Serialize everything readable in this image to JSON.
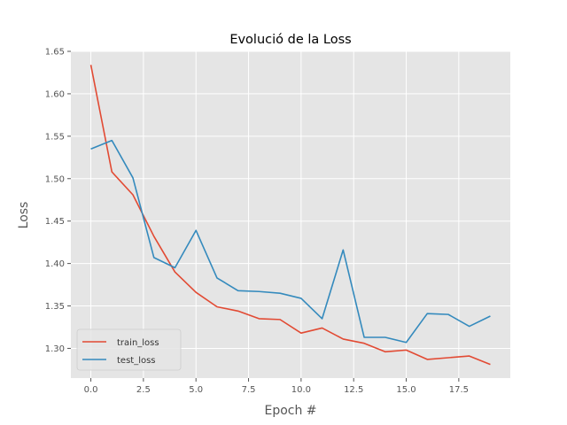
{
  "chart_data": {
    "type": "line",
    "title": "Evolució de la Loss",
    "xlabel": "Epoch #",
    "ylabel": "Loss",
    "xlim": [
      -0.95,
      19.95
    ],
    "ylim": [
      1.265,
      1.65
    ],
    "xticks": [
      0,
      2.5,
      5,
      7.5,
      10,
      12.5,
      15,
      17.5
    ],
    "xtick_labels": [
      "0.0",
      "2.5",
      "5.0",
      "7.5",
      "10.0",
      "12.5",
      "15.0",
      "17.5"
    ],
    "yticks": [
      1.3,
      1.35,
      1.4,
      1.45,
      1.5,
      1.55,
      1.6,
      1.65
    ],
    "ytick_labels": [
      "1.30",
      "1.35",
      "1.40",
      "1.45",
      "1.50",
      "1.55",
      "1.60",
      "1.65"
    ],
    "grid": true,
    "legend_position": "lower-left",
    "x": [
      0,
      1,
      2,
      3,
      4,
      5,
      6,
      7,
      8,
      9,
      10,
      11,
      12,
      13,
      14,
      15,
      16,
      17,
      18,
      19
    ],
    "series": [
      {
        "name": "train_loss",
        "color": "#E24A33",
        "values": [
          1.634,
          1.508,
          1.481,
          1.432,
          1.39,
          1.366,
          1.349,
          1.344,
          1.335,
          1.334,
          1.318,
          1.324,
          1.311,
          1.306,
          1.296,
          1.298,
          1.287,
          1.289,
          1.291,
          1.281
        ]
      },
      {
        "name": "test_loss",
        "color": "#348ABD",
        "values": [
          1.535,
          1.545,
          1.501,
          1.407,
          1.395,
          1.439,
          1.383,
          1.368,
          1.367,
          1.365,
          1.359,
          1.335,
          1.416,
          1.313,
          1.313,
          1.307,
          1.341,
          1.34,
          1.326,
          1.338
        ]
      }
    ]
  }
}
